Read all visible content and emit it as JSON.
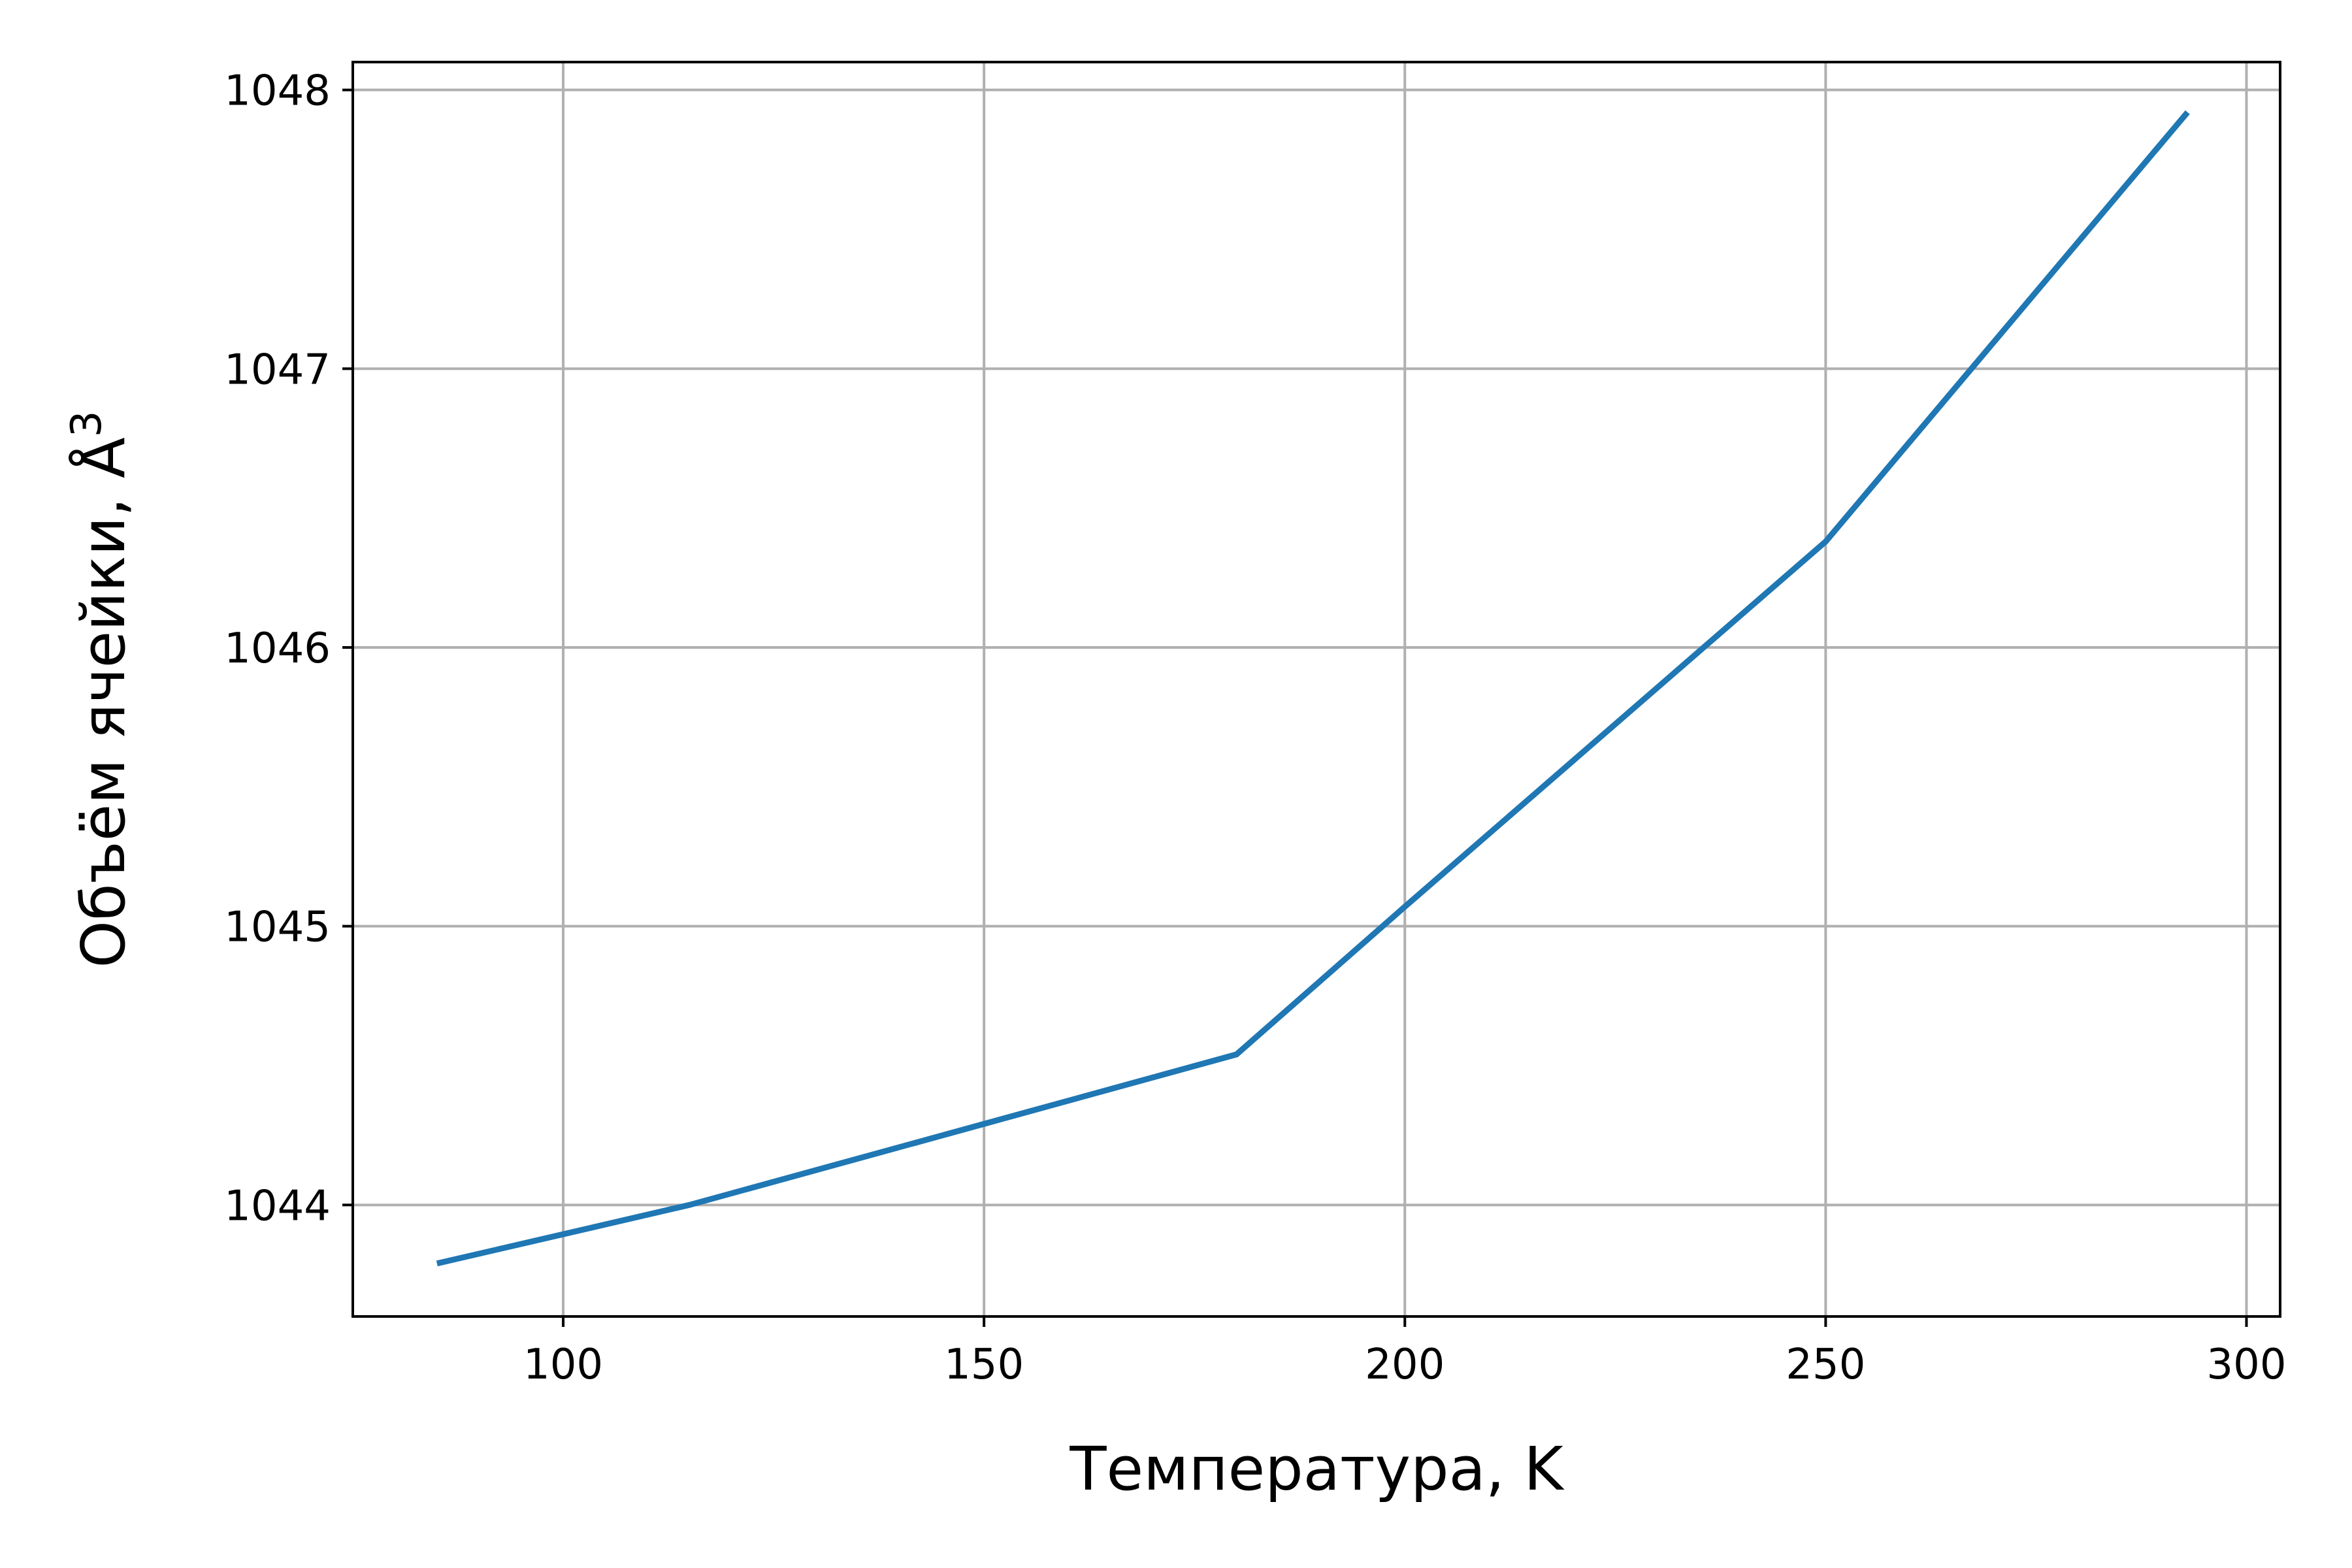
{
  "chart_data": {
    "type": "line",
    "title": "",
    "xlabel": "Температура, K",
    "ylabel": "Объём ячейки, Å",
    "ylabel_superscript": "3",
    "xlim": [
      75,
      304
    ],
    "ylim": [
      1043.6,
      1048.1
    ],
    "x_ticks": [
      100,
      150,
      200,
      250,
      300
    ],
    "y_ticks": [
      1044,
      1045,
      1046,
      1047,
      1048
    ],
    "grid": true,
    "legend": "none",
    "series": [
      {
        "color": "#1f77b4",
        "x": [
          85,
          115,
          180,
          200,
          250,
          293
        ],
        "y": [
          1043.79,
          1044.0,
          1044.54,
          1045.07,
          1046.38,
          1047.92
        ]
      }
    ]
  }
}
